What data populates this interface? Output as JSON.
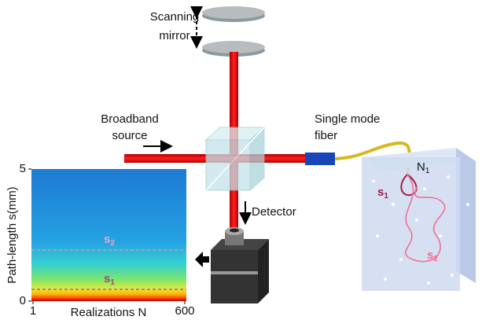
{
  "mirror": {
    "label_lines": [
      "Scanning",
      "mirror"
    ]
  },
  "source": {
    "label_lines": [
      "Broadband",
      "source"
    ]
  },
  "fiber": {
    "label_lines": [
      "Single mode",
      "fiber"
    ]
  },
  "detector": {
    "label": "Detector"
  },
  "sample": {
    "entry": {
      "text": "N",
      "sub": "1"
    },
    "short_path": {
      "text": "s",
      "sub": "1"
    },
    "long_path": {
      "text": "s",
      "sub": "2"
    }
  },
  "plot": {
    "ylabel": "Path-length s(mm)",
    "xlabel": "Realizations N",
    "xlim": [
      1,
      600
    ],
    "ylim": [
      0,
      5
    ],
    "xticks": [
      1,
      600
    ],
    "yticks": [
      0,
      5
    ],
    "markers": [
      {
        "text": "s",
        "sub": "2"
      },
      {
        "text": "s",
        "sub": "1"
      }
    ]
  }
}
